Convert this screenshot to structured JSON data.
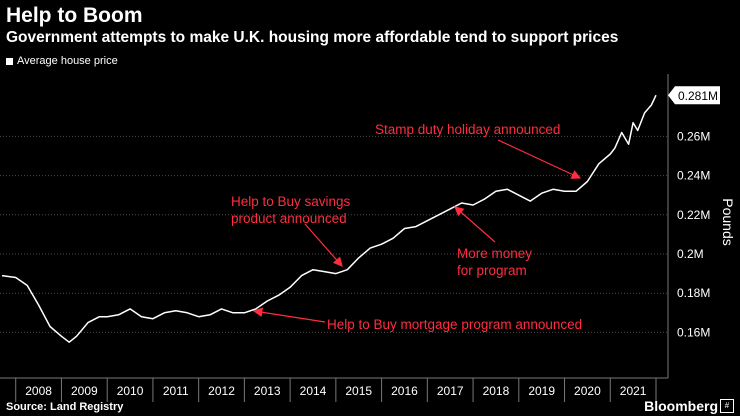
{
  "header": {
    "title": "Help to Boom",
    "subtitle": "Government attempts to make U.K. housing more affordable tend to support prices"
  },
  "footer": {
    "source": "Source: Land Registry",
    "brand": "Bloomberg"
  },
  "colors": {
    "background": "#000000",
    "line": "#ffffff",
    "annotation": "#ff2d3f",
    "grid": "#4a4a4a"
  },
  "chart_data": {
    "type": "line",
    "legend": [
      "Average house price"
    ],
    "ylabel": "Pounds",
    "ylim": [
      0.14,
      0.29
    ],
    "y_ticks": [
      {
        "value": 0.16,
        "label": "0.16M"
      },
      {
        "value": 0.18,
        "label": "0.18M"
      },
      {
        "value": 0.2,
        "label": "0.2M"
      },
      {
        "value": 0.22,
        "label": "0.22M"
      },
      {
        "value": 0.24,
        "label": "0.24M"
      },
      {
        "value": 0.26,
        "label": "0.26M"
      }
    ],
    "last_value_label": "0.281M",
    "x_tick_labels": [
      "2008",
      "2009",
      "2010",
      "2011",
      "2012",
      "2013",
      "2014",
      "2015",
      "2016",
      "2017",
      "2018",
      "2019",
      "2020",
      "2021"
    ],
    "xlim": [
      2007.7,
      2022.5
    ],
    "series": [
      {
        "name": "Average house price",
        "x": [
          2007.7,
          2008.0,
          2008.25,
          2008.5,
          2008.75,
          2009.0,
          2009.17,
          2009.33,
          2009.58,
          2009.83,
          2010.0,
          2010.25,
          2010.5,
          2010.75,
          2011.0,
          2011.25,
          2011.5,
          2011.75,
          2012.0,
          2012.25,
          2012.5,
          2012.75,
          2013.0,
          2013.25,
          2013.5,
          2013.75,
          2014.0,
          2014.25,
          2014.5,
          2014.75,
          2015.0,
          2015.25,
          2015.5,
          2015.75,
          2016.0,
          2016.25,
          2016.5,
          2016.75,
          2017.0,
          2017.25,
          2017.5,
          2017.75,
          2018.0,
          2018.25,
          2018.5,
          2018.75,
          2019.0,
          2019.25,
          2019.5,
          2019.75,
          2020.0,
          2020.25,
          2020.5,
          2020.75,
          2021.0,
          2021.1,
          2021.25,
          2021.4,
          2021.5,
          2021.6,
          2021.75,
          2021.9,
          2022.0
        ],
        "y": [
          0.189,
          0.188,
          0.184,
          0.174,
          0.163,
          0.158,
          0.155,
          0.158,
          0.165,
          0.168,
          0.168,
          0.169,
          0.172,
          0.168,
          0.167,
          0.17,
          0.171,
          0.17,
          0.168,
          0.169,
          0.172,
          0.17,
          0.17,
          0.172,
          0.176,
          0.179,
          0.183,
          0.189,
          0.192,
          0.191,
          0.19,
          0.192,
          0.198,
          0.203,
          0.205,
          0.208,
          0.213,
          0.214,
          0.217,
          0.22,
          0.223,
          0.226,
          0.225,
          0.228,
          0.232,
          0.233,
          0.23,
          0.227,
          0.231,
          0.233,
          0.232,
          0.232,
          0.237,
          0.246,
          0.251,
          0.254,
          0.262,
          0.256,
          0.267,
          0.263,
          0.272,
          0.276,
          0.281
        ]
      }
    ],
    "annotations": [
      {
        "text": "Stamp duty holiday announced",
        "lines": [
          "Stamp duty holiday announced"
        ],
        "x": 2020.4
      },
      {
        "text": "Help to Buy savings product announced",
        "lines": [
          "Help to Buy savings",
          "product announced"
        ],
        "x": 2015.0
      },
      {
        "text": "More money for program",
        "lines": [
          "More money",
          "for program"
        ],
        "x": 2017.5
      },
      {
        "text": "Help to Buy mortgage program announced",
        "lines": [
          "Help to Buy mortgage program announced"
        ],
        "x": 2013.1
      }
    ]
  }
}
